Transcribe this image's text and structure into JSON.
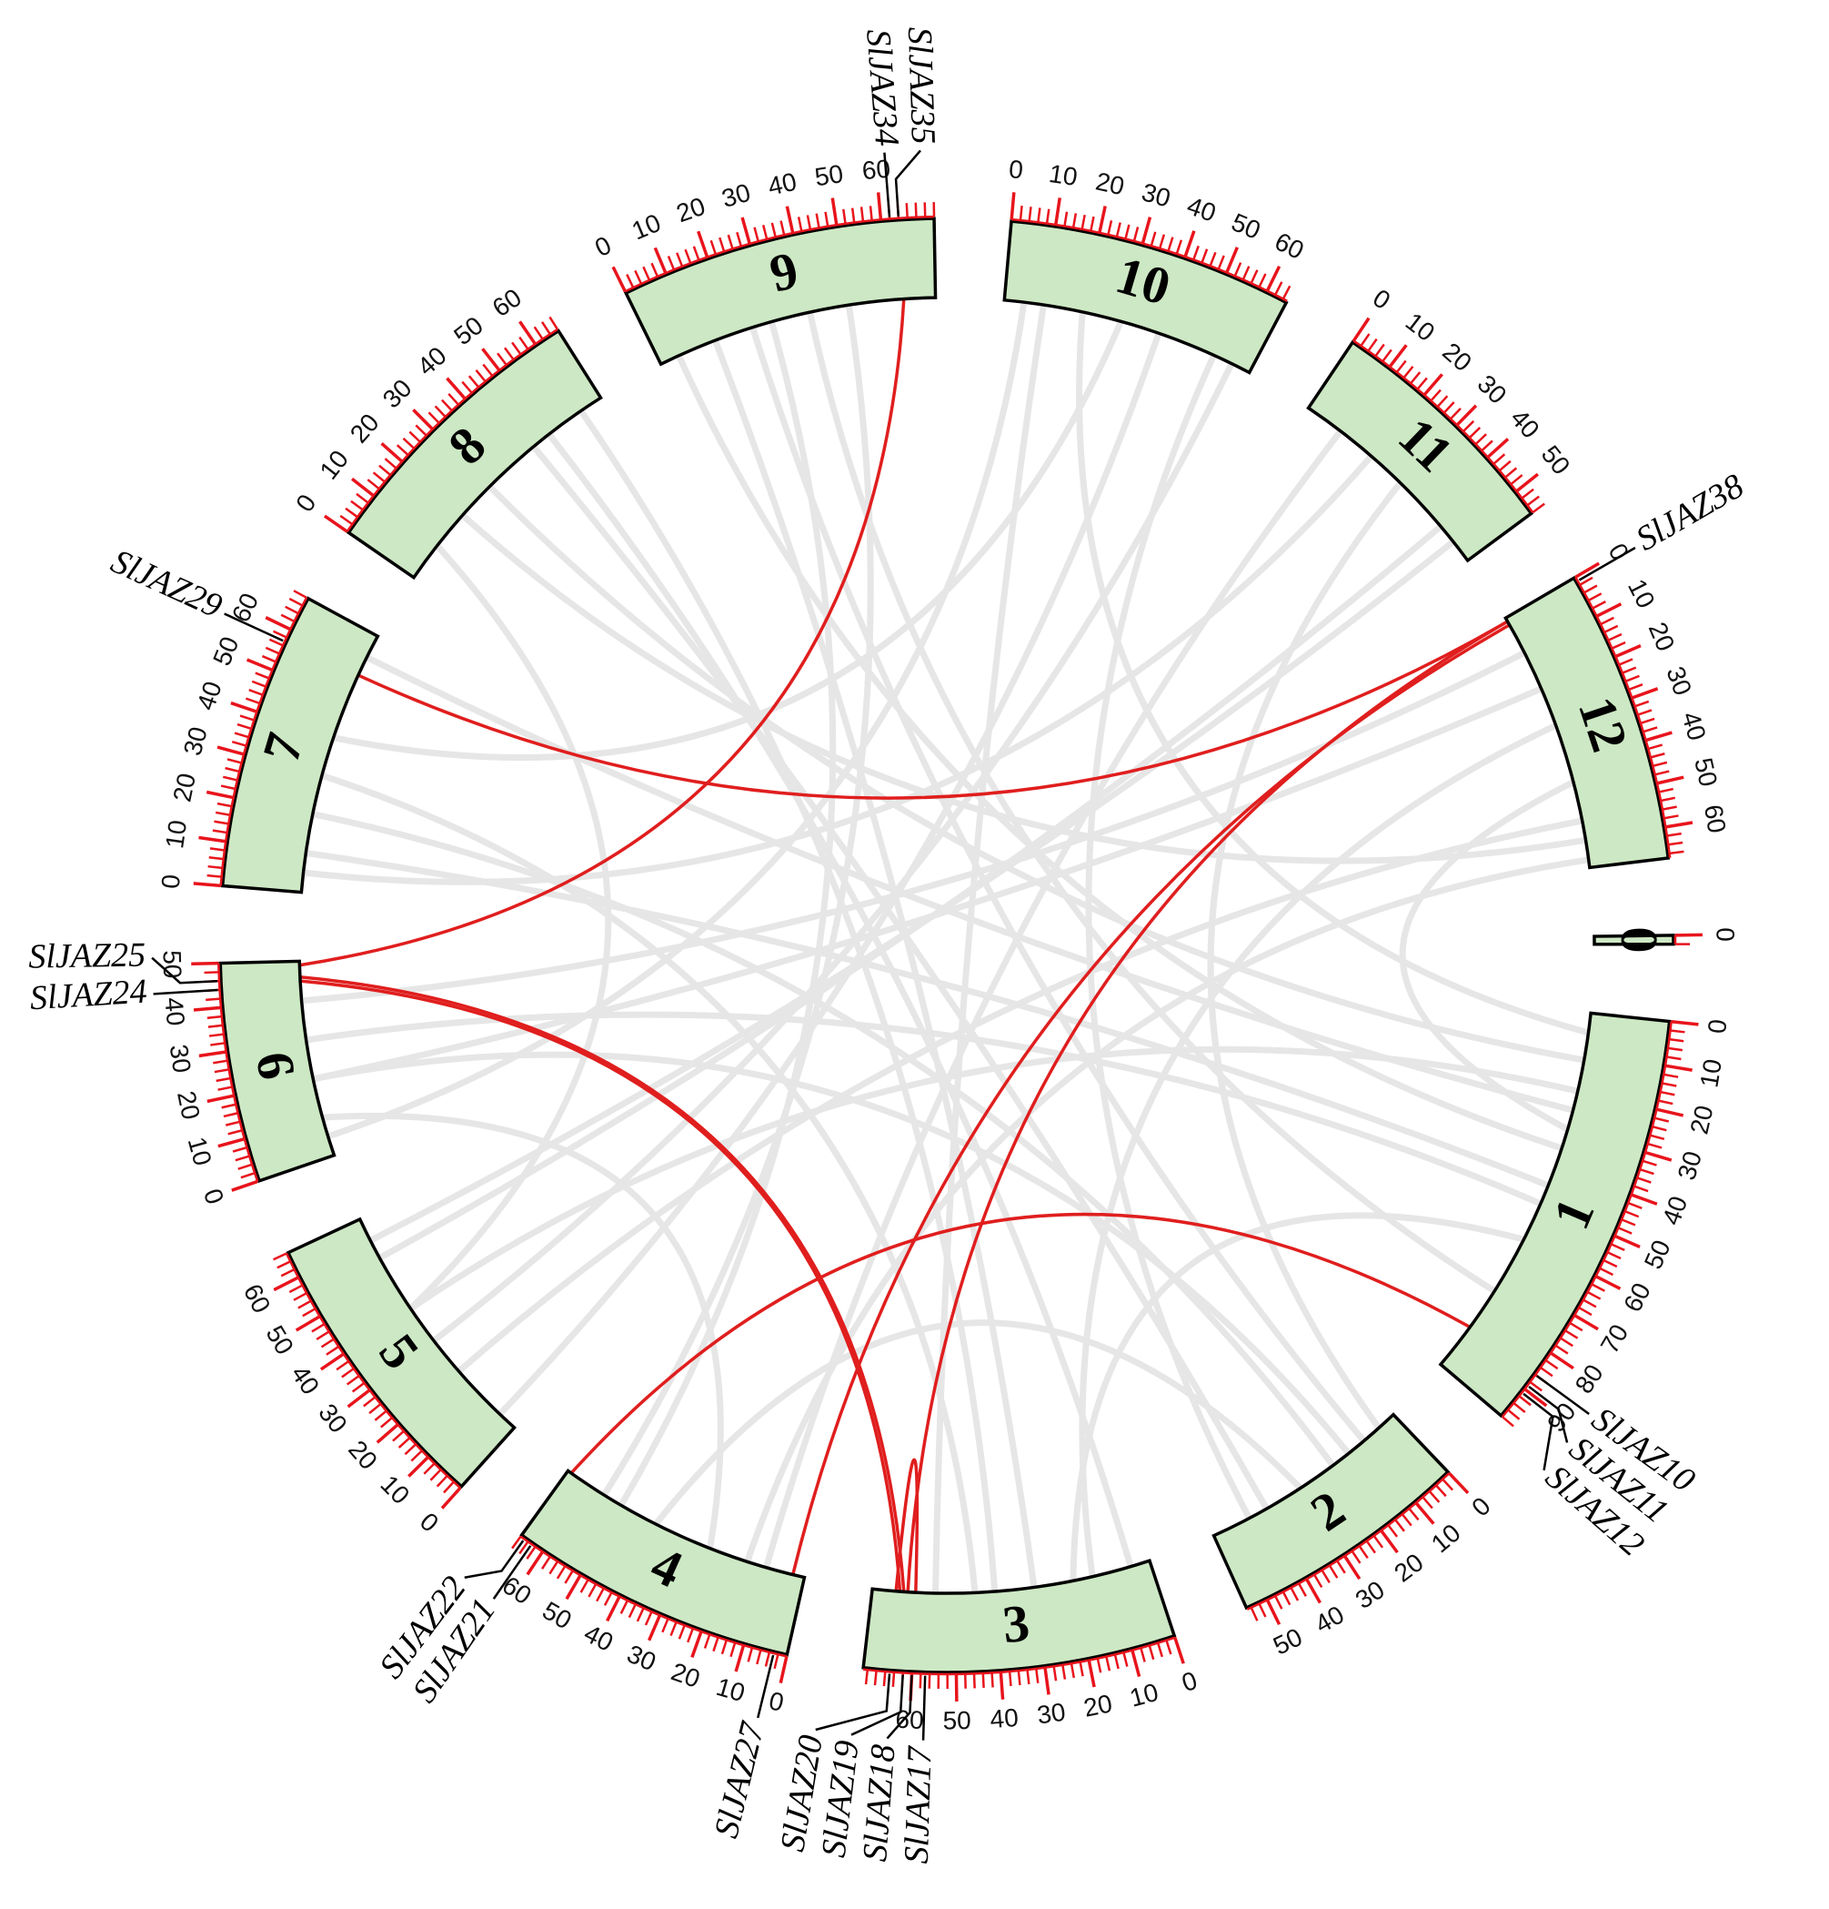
{
  "chart_data": {
    "type": "circos",
    "chromosome_color": "#cde8c4",
    "tick_color": "#e8141c",
    "link_color": "#e01e1e",
    "background_link_color": "#e6e6e6",
    "minor_tick_step": 2,
    "chromosomes": [
      {
        "name": "1",
        "length": 98,
        "ticks": [
          0,
          10,
          20,
          30,
          40,
          50,
          60,
          70,
          80,
          90
        ]
      },
      {
        "name": "2",
        "length": 55,
        "ticks": [
          0,
          10,
          20,
          30,
          40,
          50
        ]
      },
      {
        "name": "3",
        "length": 71,
        "ticks": [
          0,
          10,
          20,
          30,
          40,
          50,
          60
        ]
      },
      {
        "name": "4",
        "length": 66,
        "ticks": [
          0,
          10,
          20,
          30,
          40,
          50,
          60
        ]
      },
      {
        "name": "5",
        "length": 66,
        "ticks": [
          0,
          10,
          20,
          30,
          40,
          50,
          60
        ]
      },
      {
        "name": "6",
        "length": 50,
        "ticks": [
          0,
          10,
          20,
          30,
          40,
          50
        ]
      },
      {
        "name": "7",
        "length": 68,
        "ticks": [
          0,
          10,
          20,
          30,
          40,
          50,
          60
        ]
      },
      {
        "name": "8",
        "length": 66,
        "ticks": [
          0,
          10,
          20,
          30,
          40,
          50,
          60
        ]
      },
      {
        "name": "9",
        "length": 72,
        "ticks": [
          0,
          10,
          20,
          30,
          40,
          50,
          60
        ]
      },
      {
        "name": "10",
        "length": 65,
        "ticks": [
          0,
          10,
          20,
          30,
          40,
          50,
          60
        ]
      },
      {
        "name": "11",
        "length": 56,
        "ticks": [
          0,
          10,
          20,
          30,
          40,
          50
        ]
      },
      {
        "name": "12",
        "length": 67,
        "ticks": [
          0,
          10,
          20,
          30,
          40,
          50,
          60
        ]
      },
      {
        "name": "0",
        "length": 2,
        "ticks": [
          0
        ]
      }
    ],
    "genes": [
      {
        "name": "SlJAZ10",
        "chr": "1",
        "pos": 86
      },
      {
        "name": "SlJAZ11",
        "chr": "1",
        "pos": 89
      },
      {
        "name": "SlJAZ12",
        "chr": "1",
        "pos": 91
      },
      {
        "name": "SlJAZ17",
        "chr": "3",
        "pos": 57
      },
      {
        "name": "SlJAZ18",
        "chr": "3",
        "pos": 60
      },
      {
        "name": "SlJAZ19",
        "chr": "3",
        "pos": 62
      },
      {
        "name": "SlJAZ20",
        "chr": "3",
        "pos": 65
      },
      {
        "name": "SlJAZ21",
        "chr": "4",
        "pos": 63
      },
      {
        "name": "SlJAZ22",
        "chr": "4",
        "pos": 65
      },
      {
        "name": "SlJAZ27",
        "chr": "4",
        "pos": 3
      },
      {
        "name": "SlJAZ24",
        "chr": "6",
        "pos": 44
      },
      {
        "name": "SlJAZ25",
        "chr": "6",
        "pos": 46
      },
      {
        "name": "SlJAZ29",
        "chr": "7",
        "pos": 57
      },
      {
        "name": "SlJAZ34",
        "chr": "9",
        "pos": 62
      },
      {
        "name": "SlJAZ35",
        "chr": "9",
        "pos": 64
      },
      {
        "name": "SlJAZ38",
        "chr": "12",
        "pos": 1
      }
    ],
    "links": [
      [
        "9",
        64,
        "6",
        49
      ],
      [
        "7",
        57,
        "12",
        1
      ],
      [
        "12",
        1,
        "3",
        62
      ],
      [
        "12",
        2,
        "4",
        3
      ],
      [
        "6",
        46,
        "3",
        63
      ],
      [
        "6",
        45,
        "3",
        64
      ],
      [
        "1",
        86,
        "4",
        65
      ],
      [
        "3",
        60,
        "3",
        65
      ]
    ],
    "gray_links": [
      [
        "1",
        5,
        "10",
        20
      ],
      [
        "1",
        12,
        "8",
        30
      ],
      [
        "1",
        20,
        "5",
        40
      ],
      [
        "1",
        30,
        "12",
        45
      ],
      [
        "1",
        45,
        "7",
        10
      ],
      [
        "1",
        60,
        "3",
        20
      ],
      [
        "1",
        75,
        "9",
        40
      ],
      [
        "2",
        5,
        "11",
        30
      ],
      [
        "2",
        15,
        "6",
        20
      ],
      [
        "2",
        30,
        "4",
        40
      ],
      [
        "2",
        45,
        "10",
        55
      ],
      [
        "3",
        5,
        "8",
        50
      ],
      [
        "3",
        15,
        "12",
        30
      ],
      [
        "3",
        30,
        "9",
        15
      ],
      [
        "3",
        45,
        "7",
        30
      ],
      [
        "4",
        10,
        "11",
        10
      ],
      [
        "4",
        25,
        "6",
        10
      ],
      [
        "4",
        50,
        "9",
        30
      ],
      [
        "5",
        5,
        "10",
        40
      ],
      [
        "5",
        20,
        "12",
        55
      ],
      [
        "5",
        40,
        "8",
        10
      ],
      [
        "5",
        55,
        "11",
        45
      ],
      [
        "6",
        5,
        "10",
        5
      ],
      [
        "6",
        20,
        "12",
        20
      ],
      [
        "6",
        30,
        "1",
        50
      ],
      [
        "7",
        5,
        "11",
        20
      ],
      [
        "7",
        20,
        "2",
        20
      ],
      [
        "7",
        40,
        "10",
        30
      ],
      [
        "8",
        20,
        "12",
        60
      ],
      [
        "8",
        45,
        "2",
        40
      ],
      [
        "9",
        5,
        "1",
        35
      ],
      [
        "9",
        50,
        "4",
        55
      ],
      [
        "10",
        10,
        "3",
        55
      ],
      [
        "11",
        50,
        "5",
        60
      ],
      [
        "12",
        10,
        "6",
        40
      ],
      [
        "12",
        65,
        "4",
        15
      ],
      [
        "7",
        62,
        "1",
        25
      ],
      [
        "8",
        60,
        "3",
        40
      ],
      [
        "9",
        25,
        "2",
        10
      ],
      [
        "10",
        60,
        "5",
        30
      ]
    ]
  }
}
